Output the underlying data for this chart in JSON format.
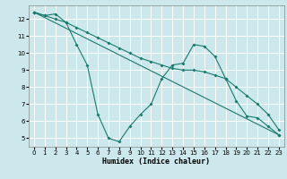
{
  "xlabel": "Humidex (Indice chaleur)",
  "bg_color": "#cce8ec",
  "grid_color": "#ffffff",
  "line_color": "#1a7a6e",
  "xlim": [
    -0.5,
    23.5
  ],
  "ylim": [
    4.5,
    12.8
  ],
  "yticks": [
    5,
    6,
    7,
    8,
    9,
    10,
    11,
    12
  ],
  "xticks": [
    0,
    1,
    2,
    3,
    4,
    5,
    6,
    7,
    8,
    9,
    10,
    11,
    12,
    13,
    14,
    15,
    16,
    17,
    18,
    19,
    20,
    21,
    22,
    23
  ],
  "series1_x": [
    0,
    1,
    2,
    3,
    4,
    5,
    6,
    7,
    8,
    9,
    10,
    11,
    12,
    13,
    14,
    15,
    16,
    17,
    18,
    19,
    20,
    21,
    22,
    23
  ],
  "series1_y": [
    12.4,
    12.2,
    12.3,
    11.8,
    10.5,
    9.3,
    6.4,
    5.0,
    4.8,
    5.7,
    6.4,
    7.0,
    8.5,
    9.3,
    9.4,
    10.5,
    10.4,
    9.8,
    8.5,
    7.2,
    6.3,
    6.2,
    5.7,
    5.2
  ],
  "series2_x": [
    0,
    23
  ],
  "series2_y": [
    12.4,
    5.2
  ],
  "series3_x": [
    0,
    1,
    2,
    3,
    4,
    5,
    6,
    7,
    8,
    9,
    10,
    11,
    12,
    13,
    14,
    15,
    16,
    17,
    18,
    19,
    20,
    21,
    22,
    23
  ],
  "series3_y": [
    12.4,
    12.2,
    12.0,
    11.8,
    11.5,
    11.2,
    10.9,
    10.6,
    10.3,
    10.0,
    9.7,
    9.5,
    9.3,
    9.1,
    9.0,
    9.0,
    8.9,
    8.7,
    8.5,
    8.0,
    7.5,
    7.0,
    6.4,
    5.5
  ]
}
